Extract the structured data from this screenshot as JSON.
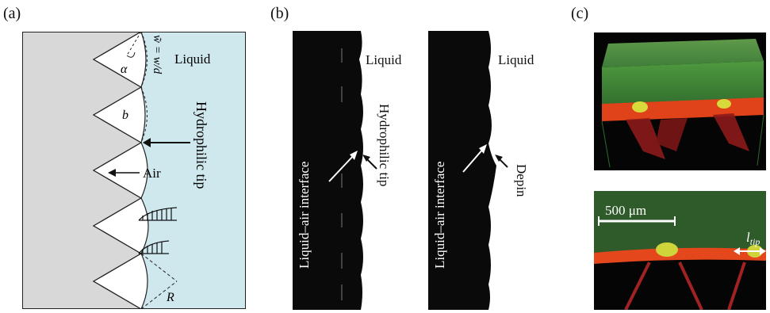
{
  "panels": {
    "a": {
      "label": "(a)",
      "liquid": "Liquid",
      "alpha": "α",
      "w_formula": "w̃ = w/d",
      "b": "b",
      "hydrophilic_tip": "Hydrophilic tip",
      "air": "Air",
      "R": "R",
      "colors": {
        "solid": "#d8d8d8",
        "liquid": "#cfe8ee",
        "air": "#ffffff"
      }
    },
    "b": {
      "label": "(b)",
      "left": {
        "liquid": "Liquid",
        "interface": "Liquid–air interface",
        "tip": "Hydrophilic tip"
      },
      "right": {
        "liquid": "Liquid",
        "interface": "Liquid–air interface",
        "depin": "Depin"
      }
    },
    "c": {
      "label": "(c)",
      "scale_bar": "500 μm",
      "l_tip": "l",
      "l_tip_sub": "tip"
    }
  }
}
